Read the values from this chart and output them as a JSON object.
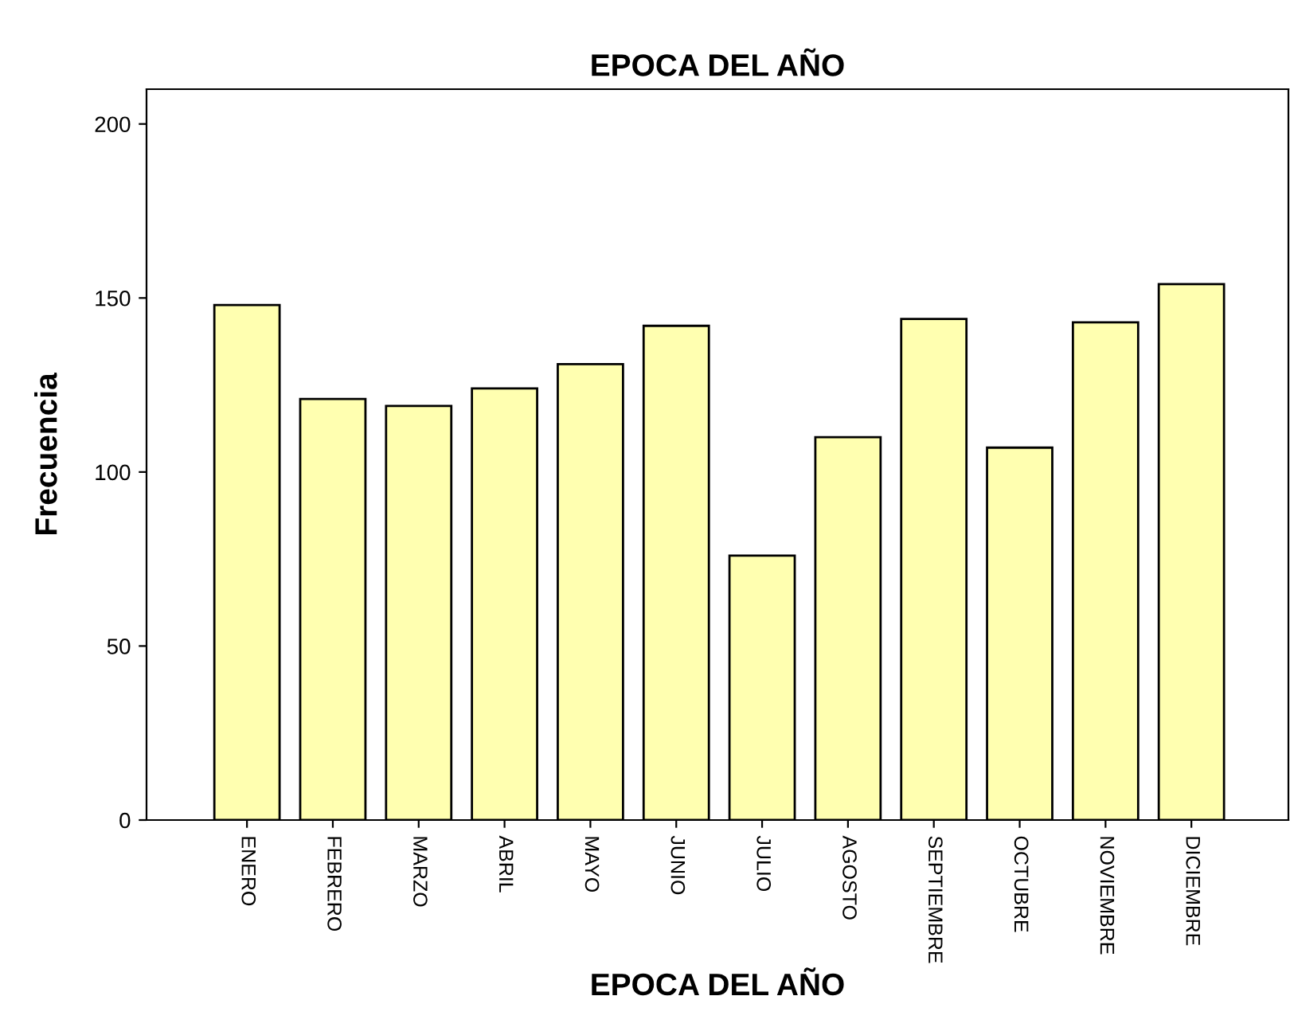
{
  "chart_data": {
    "type": "bar",
    "title": "EPOCA DEL AÑO",
    "xlabel": "EPOCA DEL AÑO",
    "ylabel": "Frecuencia",
    "categories": [
      "ENERO",
      "FEBRERO",
      "MARZO",
      "ABRIL",
      "MAYO",
      "JUNIO",
      "JULIO",
      "AGOSTO",
      "SEPTIEMBRE",
      "OCTUBRE",
      "NOVIEMBRE",
      "DICIEMBRE"
    ],
    "values": [
      148,
      121,
      119,
      124,
      131,
      142,
      76,
      110,
      144,
      107,
      143,
      154
    ],
    "color": "#ffffb0",
    "ylim": [
      0,
      210
    ],
    "yticks": [
      0,
      50,
      100,
      150,
      200
    ],
    "grid": false,
    "legend": false
  }
}
